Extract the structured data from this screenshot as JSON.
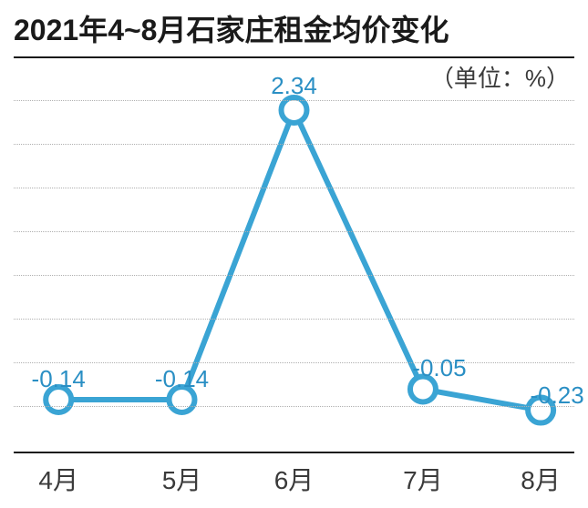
{
  "chart": {
    "type": "line",
    "title": "2021年4~8月石家庄租金均价变化",
    "title_fontsize": 32,
    "unit": "（单位：%）",
    "unit_fontsize": 26,
    "background_color": "#ffffff",
    "line_color": "#3aa4d4",
    "line_width": 6,
    "marker_size": 14,
    "marker_fill": "#ffffff",
    "marker_stroke": "#3aa4d4",
    "marker_stroke_width": 6,
    "grid_color": "#b0b0b0",
    "axis_color": "#1a1a1a",
    "label_color": "#2a8fc4",
    "label_fontsize": 26,
    "xlabel_color": "#3a3a3a",
    "xlabel_fontsize": 28,
    "categories": [
      "4月",
      "5月",
      "6月",
      "7月",
      "8月"
    ],
    "values": [
      -0.14,
      -0.14,
      2.34,
      -0.05,
      -0.23
    ],
    "value_labels": [
      "-0.14",
      "-0.14",
      "2.34",
      "-0.05",
      "-0.23"
    ],
    "ylim": [
      -0.6,
      2.8
    ],
    "grid_positions_pct": [
      11,
      22,
      33,
      44,
      55,
      66,
      77,
      88
    ],
    "x_positions_pct": [
      8,
      30,
      50,
      73,
      94
    ],
    "label_offsets_y": [
      -38,
      -38,
      -42,
      -38,
      -32
    ],
    "label_offsets_x": [
      0,
      0,
      0,
      18,
      18
    ]
  }
}
